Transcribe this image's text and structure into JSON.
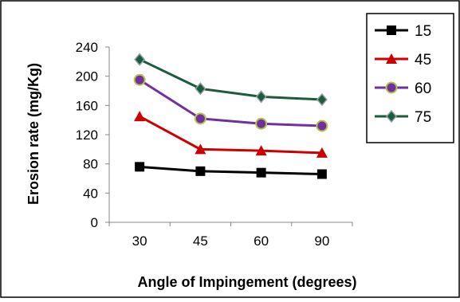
{
  "chart_data": {
    "type": "line",
    "title": "",
    "xlabel": "Angle of Impingement (degrees)",
    "ylabel": "Erosion rate (mg/Kg)",
    "categories": [
      "30",
      "45",
      "60",
      "90"
    ],
    "ylim": [
      0,
      240
    ],
    "yticks": [
      "0",
      "40",
      "80",
      "120",
      "160",
      "200",
      "240"
    ],
    "grid": false,
    "legend_position": "top-right",
    "series": [
      {
        "name": "15",
        "values": [
          76,
          70,
          68,
          66
        ],
        "color": "#000000",
        "marker": "square"
      },
      {
        "name": "45",
        "values": [
          145,
          100,
          98,
          95
        ],
        "color": "#cc0000",
        "marker": "triangle"
      },
      {
        "name": "60",
        "values": [
          195,
          142,
          135,
          132
        ],
        "color": "#7030a0",
        "marker": "circle"
      },
      {
        "name": "75",
        "values": [
          223,
          183,
          172,
          168
        ],
        "color": "#1e5a3c",
        "marker": "diamond"
      }
    ]
  }
}
